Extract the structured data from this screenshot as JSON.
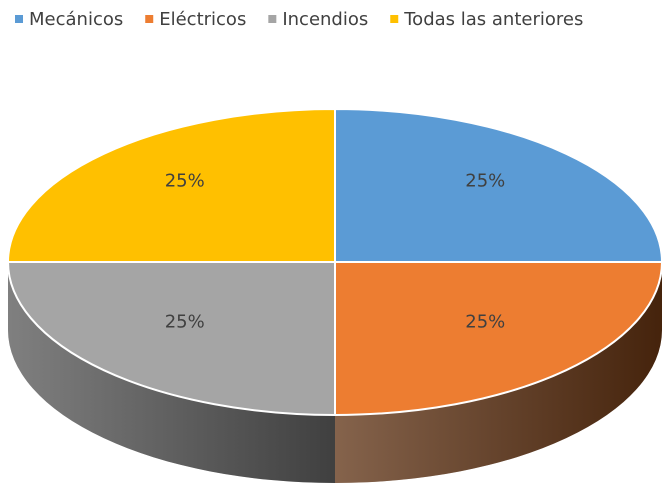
{
  "chart_data": {
    "type": "pie3d",
    "categories": [
      "Mecánicos",
      "Eléctricos",
      "Incendios",
      "Todas las anteriores"
    ],
    "values": [
      25,
      25,
      25,
      25
    ],
    "value_labels": [
      "25%",
      "25%",
      "25%",
      "25%"
    ],
    "colors": [
      "#5b9bd5",
      "#ed7d31",
      "#a5a5a5",
      "#ffc000"
    ],
    "side_colors": [
      "#2e5f8f",
      "#5c2f10",
      "#555555",
      "#8a6800"
    ],
    "legend": "top"
  }
}
